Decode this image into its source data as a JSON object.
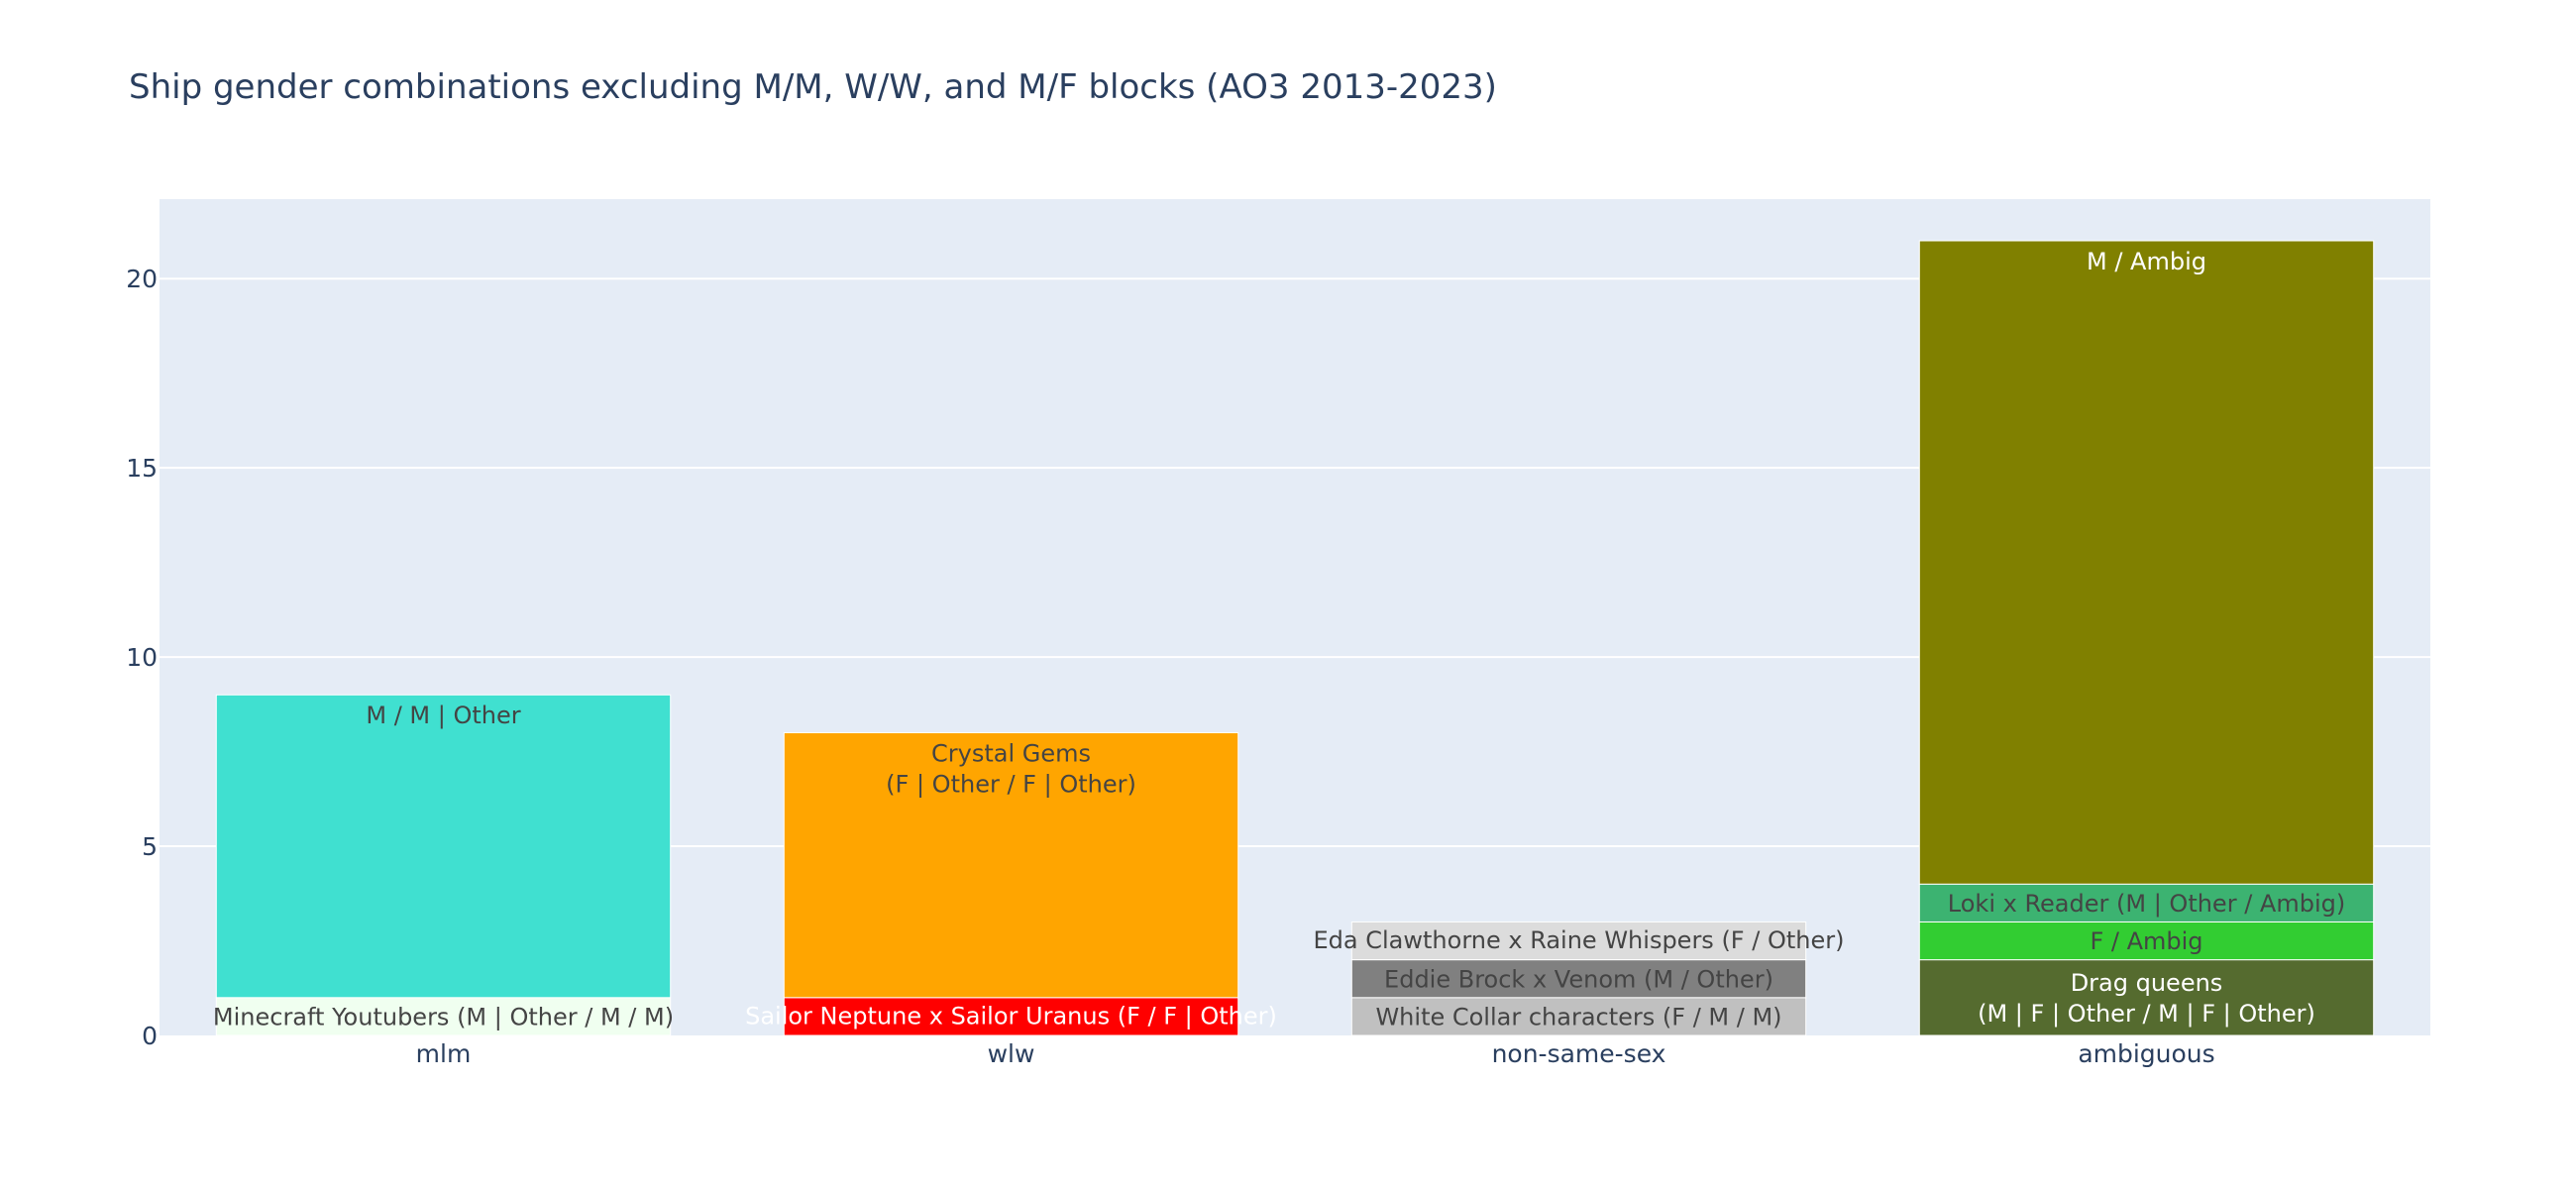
{
  "chart_data": {
    "type": "bar",
    "stacked": true,
    "title": "Ship gender combinations excluding M/M, W/W, and M/F blocks (AO3 2013-2023)",
    "xlabel": "",
    "ylabel": "",
    "categories": [
      "mlm",
      "wlw",
      "non-same-sex",
      "ambiguous"
    ],
    "ylim": [
      0,
      22.1
    ],
    "yticks": [
      0,
      5,
      10,
      15,
      20
    ],
    "grid": true,
    "legend": "none",
    "plot_background": "#e5ecf6",
    "segments": [
      {
        "category": "mlm",
        "value": 1,
        "color": "#f0fff0",
        "text_color": "#444444",
        "label": [
          "Minecraft Youtubers (M | Other / M / M)"
        ]
      },
      {
        "category": "mlm",
        "value": 8,
        "color": "#40e0d0",
        "text_color": "#444444",
        "label": [
          "M / M | Other"
        ]
      },
      {
        "category": "wlw",
        "value": 1,
        "color": "#ff0000",
        "text_color": "#ffffff",
        "label": [
          "Sailor Neptune x Sailor Uranus (F / F | Other)"
        ],
        "small": true
      },
      {
        "category": "wlw",
        "value": 7,
        "color": "#ffa500",
        "text_color": "#444444",
        "label": [
          "Crystal Gems",
          "(F | Other / F | Other)"
        ]
      },
      {
        "category": "non-same-sex",
        "value": 1,
        "color": "#c0c0c0",
        "text_color": "#444444",
        "label": [
          "White Collar characters (F / M / M)"
        ]
      },
      {
        "category": "non-same-sex",
        "value": 1,
        "color": "#808080",
        "text_color": "#444444",
        "label": [
          "Eddie Brock x Venom (M / Other)"
        ]
      },
      {
        "category": "non-same-sex",
        "value": 1,
        "color": "#dcdcdc",
        "text_color": "#444444",
        "label": [
          "Eda Clawthorne x Raine Whispers (F / Other)"
        ],
        "small": true
      },
      {
        "category": "ambiguous",
        "value": 2,
        "color": "#556b2f",
        "text_color": "#ffffff",
        "label": [
          "Drag queens",
          "(M | F | Other / M | F | Other)"
        ]
      },
      {
        "category": "ambiguous",
        "value": 1,
        "color": "#32cd32",
        "text_color": "#444444",
        "label": [
          "F / Ambig"
        ]
      },
      {
        "category": "ambiguous",
        "value": 1,
        "color": "#3cb371",
        "text_color": "#444444",
        "label": [
          "Loki x Reader (M | Other / Ambig)"
        ]
      },
      {
        "category": "ambiguous",
        "value": 17,
        "color": "#808000",
        "text_color": "#ffffff",
        "label": [
          "M / Ambig"
        ]
      }
    ]
  }
}
